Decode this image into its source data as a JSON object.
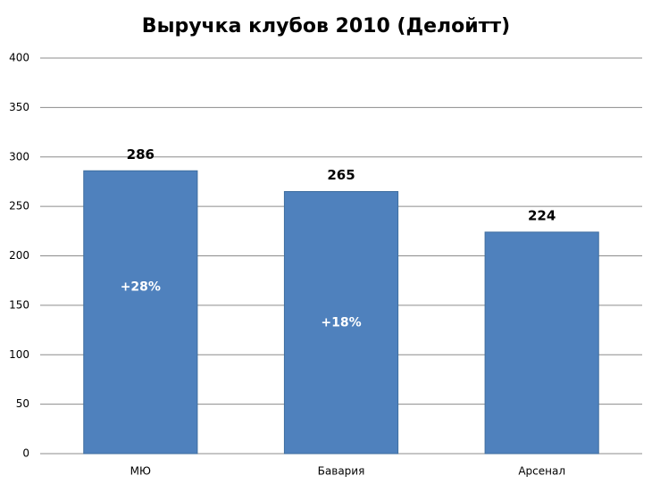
{
  "chart_data": {
    "type": "bar",
    "title": "Выручка клубов 2010 (Делойтт)",
    "categories": [
      "МЮ",
      "Бавария",
      "Арсенал"
    ],
    "values": [
      286,
      265,
      224
    ],
    "color": "#4f81bd",
    "bar_annotations": [
      "+28%",
      "+18%"
    ],
    "ylim": [
      0,
      400
    ],
    "yticks": [
      0,
      50,
      100,
      150,
      200,
      250,
      300,
      350,
      400
    ],
    "grid": true
  }
}
